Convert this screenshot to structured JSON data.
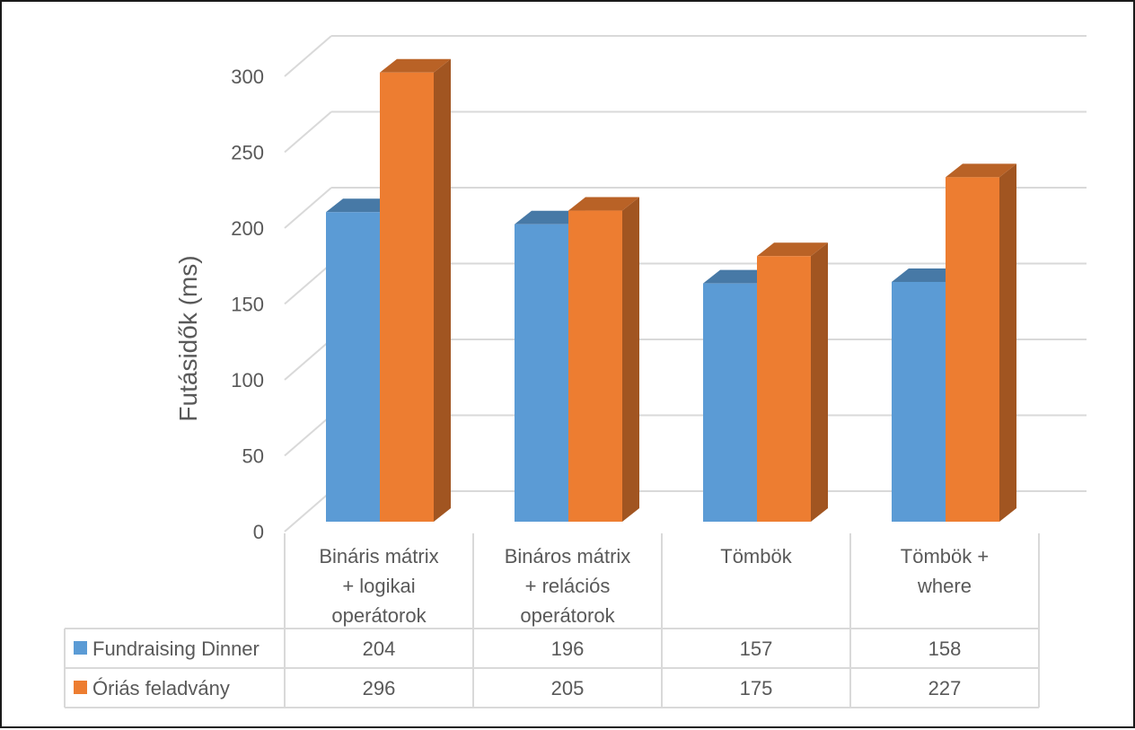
{
  "chart_data": {
    "type": "bar",
    "variant": "3d-clustered-column-with-data-table",
    "title": "",
    "xlabel": "",
    "ylabel": "Futásidők (ms)",
    "ylim": [
      0,
      300
    ],
    "yticks": [
      0,
      50,
      100,
      150,
      200,
      250,
      300
    ],
    "grid": true,
    "categories": [
      [
        "Bináris mátrix",
        "+ logikai",
        "operátorok"
      ],
      [
        "Bináros mátrix",
        "+ relációs",
        "operátorok"
      ],
      [
        "Tömbök"
      ],
      [
        "Tömbök +",
        "where"
      ]
    ],
    "series": [
      {
        "name": "Fundraising Dinner",
        "values": [
          204,
          196,
          157,
          158
        ],
        "color": "#5B9BD5"
      },
      {
        "name": "Óriás feladvány",
        "values": [
          296,
          205,
          175,
          227
        ],
        "color": "#ED7D31"
      }
    ],
    "legend": "data-table-left"
  },
  "colors": {
    "gridline": "#d9d9d9",
    "text": "#595959",
    "frame": "#1a1a1a"
  }
}
